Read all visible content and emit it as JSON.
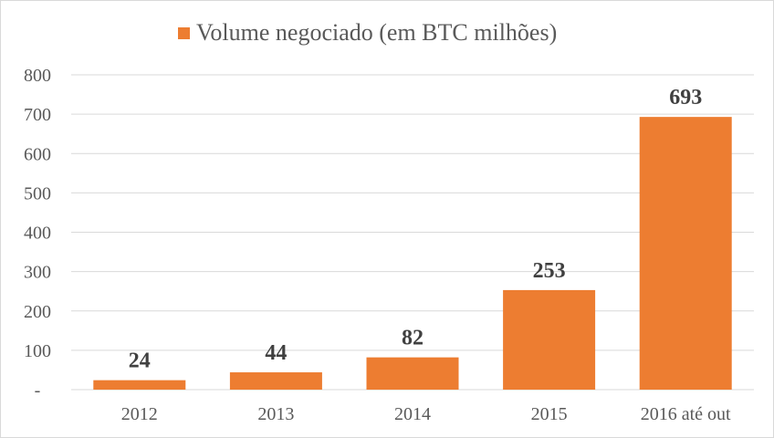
{
  "chart_data": {
    "type": "bar",
    "title": "",
    "legend": {
      "label": "Volume negociado (em BTC milhões)",
      "placement": "top"
    },
    "categories": [
      "2012",
      "2013",
      "2014",
      "2015",
      "2016 até out"
    ],
    "values": [
      24,
      44,
      82,
      253,
      693
    ],
    "data_labels": [
      "24",
      "44",
      "82",
      "253",
      "693"
    ],
    "y_ticks": [
      0,
      100,
      200,
      300,
      400,
      500,
      600,
      700,
      800
    ],
    "y_tick_labels": [
      "-",
      "100",
      "200",
      "300",
      "400",
      "500",
      "600",
      "700",
      "800"
    ],
    "ylim": [
      0,
      800
    ],
    "xlabel": "",
    "ylabel": "",
    "grid": true,
    "colors": {
      "bar": "#ed7d31",
      "grid": "#d9d9d9",
      "text": "#595959",
      "label": "#404040"
    }
  }
}
